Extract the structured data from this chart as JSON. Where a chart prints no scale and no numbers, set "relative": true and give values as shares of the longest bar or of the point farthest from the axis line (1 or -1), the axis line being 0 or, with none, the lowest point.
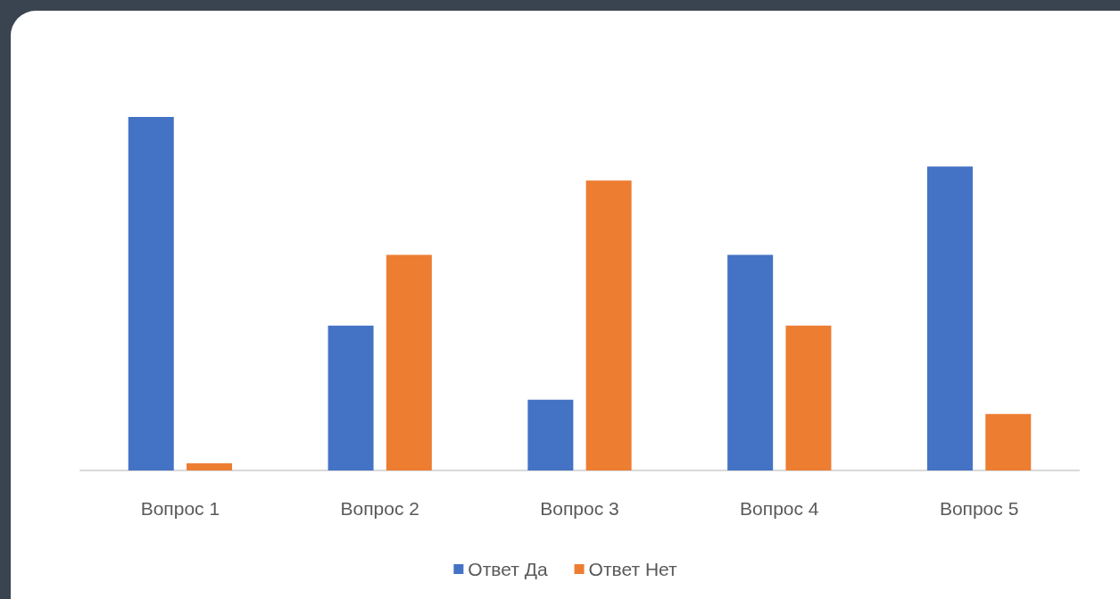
{
  "chart_data": {
    "type": "bar",
    "relative": true,
    "categories": [
      "Вопрос 1",
      "Вопрос 2",
      "Вопрос 3",
      "Вопрос 4",
      "Вопрос 5"
    ],
    "series": [
      {
        "name": "Ответ Да",
        "color": "#4472c4",
        "values": [
          1,
          0.41,
          0.2,
          0.61,
          0.86
        ]
      },
      {
        "name": "Ответ Нет",
        "color": "#ed7d31",
        "values": [
          0.02,
          0.61,
          0.82,
          0.41,
          0.16
        ]
      }
    ],
    "legend": "bottom"
  }
}
